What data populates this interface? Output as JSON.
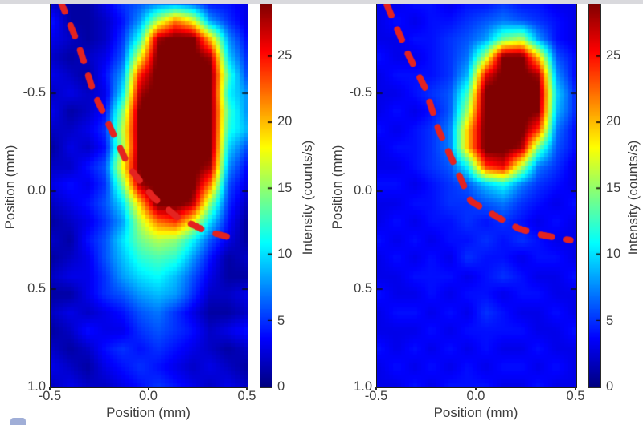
{
  "figure": {
    "description": "Two-panel fluorescence intensity heatmap comparison with jet colormap, red dashed boundary curve overlay, and intensity colorbars",
    "background": "#ffffff",
    "top_strip_color": "#d9d9dd",
    "text_color": "#3e3e3e",
    "dash_color": "#e42320",
    "blob_color": "#790705",
    "corner_icon": "partial-blue-rounded-square"
  },
  "colorbar": {
    "label": "Intensity (counts/s)",
    "vmin": 0,
    "vmax": 29,
    "ticks": [
      {
        "v": 0,
        "label": "0"
      },
      {
        "v": 5,
        "label": "5"
      },
      {
        "v": 10,
        "label": "10"
      },
      {
        "v": 15,
        "label": "15"
      },
      {
        "v": 20,
        "label": "20"
      },
      {
        "v": 25,
        "label": "25"
      }
    ]
  },
  "chart_data": [
    {
      "type": "heatmap",
      "panel": "left",
      "xlabel": "Position (mm)",
      "ylabel": "Position (mm)",
      "x_range": [
        -0.5,
        0.5
      ],
      "y_range_visible": [
        -0.97,
        1.0
      ],
      "x_ticks": [
        {
          "v": -0.5,
          "label": "-0.5"
        },
        {
          "v": 0.0,
          "label": "0.0"
        },
        {
          "v": 0.5,
          "label": "0.5"
        }
      ],
      "y_ticks": [
        {
          "v": -0.5,
          "label": "-0.5"
        },
        {
          "v": 0.0,
          "label": "0.0"
        },
        {
          "v": 0.5,
          "label": "0.5"
        },
        {
          "v": 1.0,
          "label": "1.0"
        }
      ],
      "colormap": "jet",
      "vmin": 0,
      "vmax": 29,
      "grid_x": [
        -0.5,
        -0.41,
        -0.32,
        -0.23,
        -0.14,
        -0.05,
        0.05,
        0.14,
        0.23,
        0.32,
        0.41,
        0.5
      ],
      "grid_y": [
        -0.95,
        -0.86,
        -0.77,
        -0.67,
        -0.58,
        -0.49,
        -0.4,
        -0.3,
        -0.21,
        -0.12,
        -0.03,
        0.07,
        0.16,
        0.25,
        0.35,
        0.44,
        0.53,
        0.63,
        0.72,
        0.81,
        0.91,
        1.0
      ],
      "intensity": [
        [
          2,
          1,
          1,
          3,
          5,
          6,
          7,
          7,
          6,
          4,
          4,
          3
        ],
        [
          4,
          1,
          1,
          2,
          4,
          8,
          16,
          22,
          18,
          8,
          5,
          3
        ],
        [
          3,
          2,
          1,
          2,
          5,
          12,
          28,
          30,
          30,
          20,
          8,
          4
        ],
        [
          2,
          1,
          2,
          3,
          6,
          18,
          30,
          30,
          30,
          28,
          10,
          5
        ],
        [
          3,
          2,
          1,
          4,
          8,
          25,
          30,
          30,
          30,
          30,
          13,
          6
        ],
        [
          2,
          3,
          2,
          3,
          10,
          28,
          30,
          30,
          30,
          30,
          11,
          8
        ],
        [
          3,
          1,
          2,
          4,
          14,
          30,
          30,
          30,
          30,
          30,
          13,
          8
        ],
        [
          2,
          2,
          3,
          5,
          16,
          30,
          30,
          30,
          30,
          30,
          12,
          9
        ],
        [
          1,
          3,
          2,
          4,
          15,
          30,
          30,
          30,
          30,
          30,
          10,
          6
        ],
        [
          2,
          2,
          4,
          6,
          18,
          30,
          30,
          30,
          30,
          28,
          8,
          4
        ],
        [
          3,
          4,
          3,
          5,
          14,
          28,
          30,
          30,
          30,
          22,
          6,
          3
        ],
        [
          2,
          3,
          4,
          6,
          10,
          20,
          30,
          30,
          28,
          15,
          5,
          2
        ],
        [
          1,
          2,
          3,
          5,
          8,
          16,
          22,
          24,
          18,
          10,
          4,
          1
        ],
        [
          2,
          1,
          4,
          6,
          10,
          14,
          16,
          15,
          11,
          6,
          3,
          1
        ],
        [
          1,
          2,
          3,
          6,
          9,
          12,
          13,
          12,
          8,
          4,
          1,
          2
        ],
        [
          2,
          3,
          3,
          5,
          8,
          10,
          11,
          9,
          6,
          3,
          1,
          1
        ],
        [
          1,
          1,
          3,
          5,
          6,
          8,
          9,
          8,
          5,
          2,
          2,
          3
        ],
        [
          2,
          3,
          2,
          3,
          4,
          6,
          7,
          5,
          3,
          1,
          1,
          2
        ],
        [
          1,
          2,
          4,
          3,
          3,
          5,
          6,
          5,
          4,
          2,
          3,
          4
        ],
        [
          2,
          1,
          2,
          4,
          5,
          4,
          5,
          4,
          3,
          2,
          1,
          2
        ],
        [
          3,
          2,
          1,
          3,
          4,
          5,
          4,
          3,
          2,
          3,
          2,
          1
        ],
        [
          2,
          3,
          2,
          2,
          3,
          4,
          5,
          4,
          3,
          2,
          3,
          2
        ]
      ],
      "overlay_dashed_curve_mm": [
        [
          -0.45,
          -0.97
        ],
        [
          -0.36,
          -0.75
        ],
        [
          -0.28,
          -0.5
        ],
        [
          -0.19,
          -0.31
        ],
        [
          -0.1,
          -0.12
        ],
        [
          0.02,
          0.03
        ],
        [
          0.14,
          0.13
        ],
        [
          0.28,
          0.2
        ],
        [
          0.46,
          0.25
        ]
      ]
    },
    {
      "type": "heatmap",
      "panel": "right",
      "xlabel": "Position (mm)",
      "ylabel": "Position (mm)",
      "x_range": [
        -0.5,
        0.5
      ],
      "y_range_visible": [
        -0.97,
        1.0
      ],
      "x_ticks": [
        {
          "v": -0.5,
          "label": "-0.5"
        },
        {
          "v": 0.0,
          "label": "0.0"
        },
        {
          "v": 0.5,
          "label": "0.5"
        }
      ],
      "y_ticks": [
        {
          "v": -0.5,
          "label": "-0.5"
        },
        {
          "v": 0.0,
          "label": "0.0"
        },
        {
          "v": 0.5,
          "label": "0.5"
        },
        {
          "v": 1.0,
          "label": "1.0"
        }
      ],
      "colormap": "jet",
      "vmin": 0,
      "vmax": 29,
      "grid_x": [
        -0.5,
        -0.41,
        -0.32,
        -0.23,
        -0.14,
        -0.05,
        0.05,
        0.14,
        0.23,
        0.32,
        0.41,
        0.5
      ],
      "grid_y": [
        -0.95,
        -0.86,
        -0.77,
        -0.67,
        -0.58,
        -0.49,
        -0.4,
        -0.3,
        -0.21,
        -0.12,
        -0.03,
        0.07,
        0.16,
        0.25,
        0.35,
        0.44,
        0.53,
        0.63,
        0.72,
        0.81,
        0.91,
        1.0
      ],
      "intensity": [
        [
          3,
          3,
          4,
          4,
          3,
          4,
          4,
          5,
          4,
          4,
          3,
          3
        ],
        [
          3,
          4,
          3,
          4,
          4,
          5,
          6,
          7,
          6,
          5,
          4,
          3
        ],
        [
          3,
          3,
          4,
          4,
          5,
          6,
          8,
          14,
          16,
          8,
          4,
          3
        ],
        [
          4,
          3,
          3,
          4,
          5,
          7,
          16,
          30,
          30,
          20,
          6,
          4
        ],
        [
          3,
          4,
          4,
          4,
          5,
          9,
          26,
          30,
          30,
          28,
          8,
          4
        ],
        [
          3,
          3,
          4,
          5,
          6,
          13,
          30,
          30,
          30,
          30,
          10,
          5
        ],
        [
          3,
          4,
          3,
          4,
          6,
          16,
          30,
          30,
          30,
          29,
          9,
          5
        ],
        [
          4,
          3,
          4,
          5,
          7,
          20,
          30,
          30,
          30,
          24,
          7,
          4
        ],
        [
          3,
          4,
          4,
          5,
          7,
          20,
          30,
          30,
          28,
          14,
          6,
          4
        ],
        [
          3,
          3,
          4,
          5,
          6,
          11,
          24,
          26,
          16,
          7,
          5,
          3
        ],
        [
          4,
          4,
          3,
          4,
          5,
          6,
          9,
          11,
          7,
          5,
          4,
          3
        ],
        [
          3,
          3,
          4,
          4,
          5,
          5,
          6,
          7,
          5,
          4,
          3,
          4
        ],
        [
          3,
          4,
          3,
          4,
          4,
          5,
          4,
          5,
          4,
          3,
          4,
          3
        ],
        [
          4,
          3,
          4,
          3,
          4,
          4,
          5,
          4,
          5,
          4,
          3,
          3
        ],
        [
          3,
          4,
          3,
          4,
          3,
          5,
          4,
          4,
          3,
          4,
          4,
          3
        ],
        [
          3,
          3,
          4,
          4,
          4,
          3,
          4,
          5,
          4,
          3,
          3,
          4
        ],
        [
          4,
          3,
          3,
          4,
          3,
          4,
          4,
          3,
          4,
          4,
          3,
          3
        ],
        [
          3,
          4,
          4,
          3,
          4,
          3,
          5,
          4,
          3,
          3,
          4,
          3
        ],
        [
          3,
          3,
          3,
          4,
          3,
          4,
          4,
          4,
          4,
          3,
          3,
          4
        ],
        [
          4,
          3,
          4,
          3,
          4,
          3,
          4,
          3,
          3,
          4,
          3,
          3
        ],
        [
          3,
          4,
          3,
          4,
          3,
          4,
          3,
          4,
          4,
          3,
          4,
          3
        ],
        [
          3,
          3,
          4,
          3,
          4,
          4,
          4,
          3,
          3,
          4,
          3,
          3
        ]
      ],
      "overlay_dashed_curve_mm": [
        [
          -0.45,
          -0.95
        ],
        [
          -0.34,
          -0.69
        ],
        [
          -0.26,
          -0.53
        ],
        [
          -0.19,
          -0.31
        ],
        [
          -0.1,
          -0.11
        ],
        [
          -0.03,
          0.05
        ],
        [
          0.1,
          0.13
        ],
        [
          0.21,
          0.19
        ],
        [
          0.31,
          0.22
        ],
        [
          0.47,
          0.25
        ]
      ]
    }
  ]
}
